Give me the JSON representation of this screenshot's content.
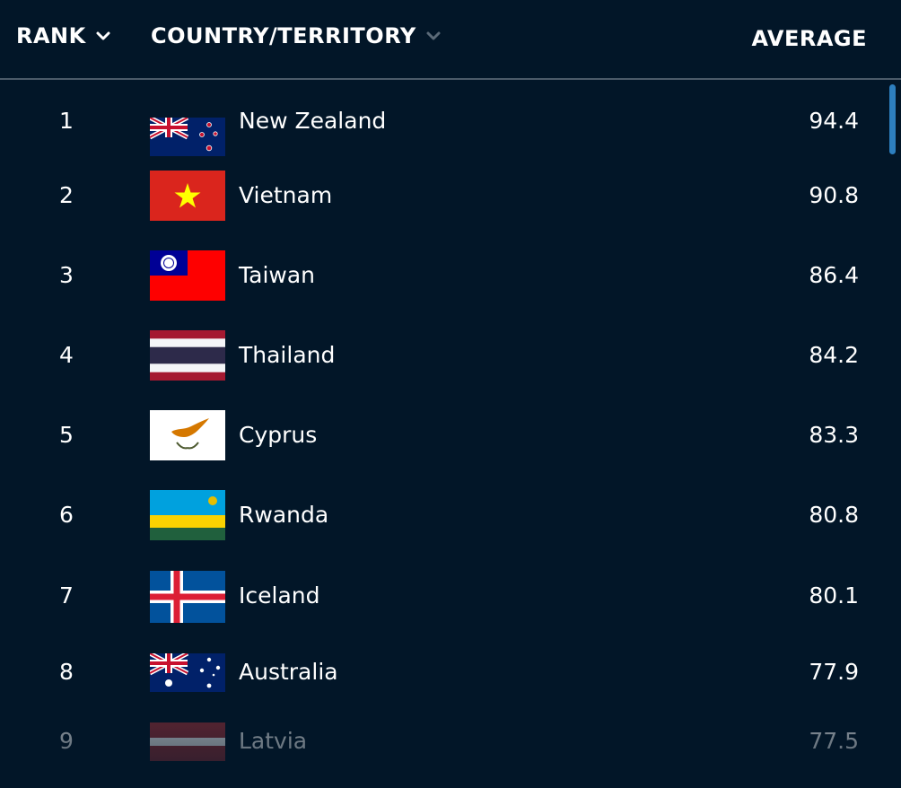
{
  "header": {
    "rank_label": "RANK",
    "country_label": "COUNTRY/TERRITORY",
    "average_label": "AVERAGE"
  },
  "rows": [
    {
      "rank": "1",
      "name": "New Zealand",
      "value": "94.4",
      "flag": "new-zealand-flag"
    },
    {
      "rank": "2",
      "name": "Vietnam",
      "value": "90.8",
      "flag": "vietnam-flag"
    },
    {
      "rank": "3",
      "name": "Taiwan",
      "value": "86.4",
      "flag": "taiwan-flag"
    },
    {
      "rank": "4",
      "name": "Thailand",
      "value": "84.2",
      "flag": "thailand-flag"
    },
    {
      "rank": "5",
      "name": "Cyprus",
      "value": "83.3",
      "flag": "cyprus-flag"
    },
    {
      "rank": "6",
      "name": "Rwanda",
      "value": "80.8",
      "flag": "rwanda-flag"
    },
    {
      "rank": "7",
      "name": "Iceland",
      "value": "80.1",
      "flag": "iceland-flag"
    },
    {
      "rank": "8",
      "name": "Australia",
      "value": "77.9",
      "flag": "australia-flag"
    },
    {
      "rank": "9",
      "name": "Latvia",
      "value": "77.5",
      "flag": "latvia-flag"
    }
  ],
  "colors": {
    "background": "#021628",
    "divider": "#4c5b69",
    "scrollbar": "#2d7fbf",
    "text": "#ffffff"
  }
}
